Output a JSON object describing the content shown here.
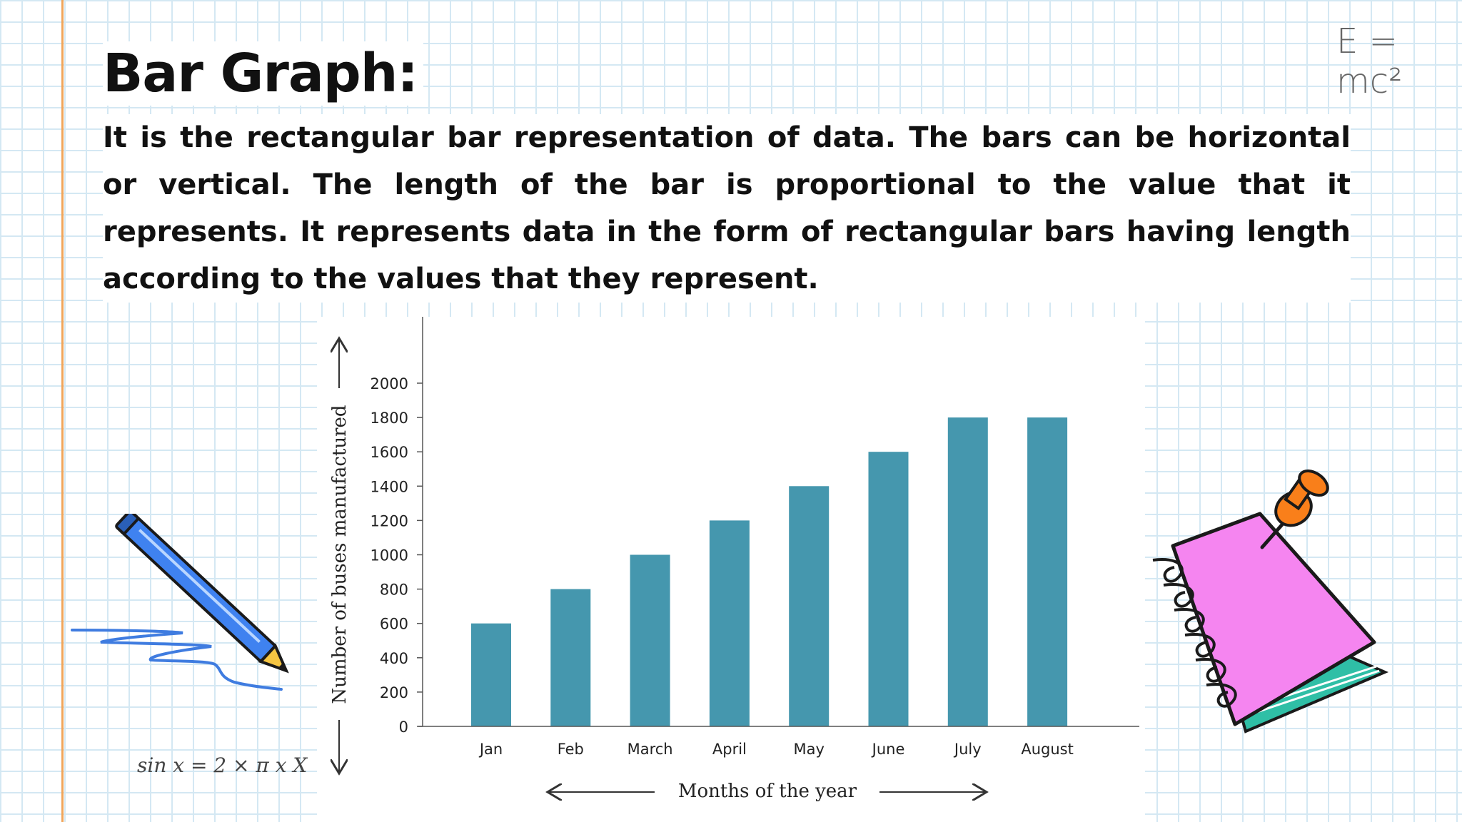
{
  "slide": {
    "title": "Bar Graph:",
    "paragraph": "It is the rectangular bar representation of data. The bars can be horizontal or vertical. The length of the bar is proportional to the value that it represents. It represents data in the form of rectangular bars having length according to the values that they represent.",
    "formula_top": "E = mc²",
    "formula_bottom": "sin x = 2 × π x   X"
  },
  "colors": {
    "bar": "#4597ae",
    "margin_line": "#f0a55a",
    "grid": "#d4e8f3"
  },
  "decorations": [
    "pencil-icon",
    "notebook-icon",
    "pushpin-icon"
  ],
  "chart_data": {
    "type": "bar",
    "categories": [
      "Jan",
      "Feb",
      "March",
      "April",
      "May",
      "June",
      "July",
      "August"
    ],
    "values": [
      600,
      800,
      1000,
      1200,
      1400,
      1600,
      1800,
      1800
    ],
    "xlabel": "Months of the year",
    "ylabel": "Number of buses manufactured",
    "ylim": [
      0,
      2000
    ],
    "yticks": [
      0,
      200,
      400,
      600,
      800,
      1000,
      1200,
      1400,
      1600,
      1800,
      2000
    ],
    "grid": false,
    "legend": "none"
  }
}
